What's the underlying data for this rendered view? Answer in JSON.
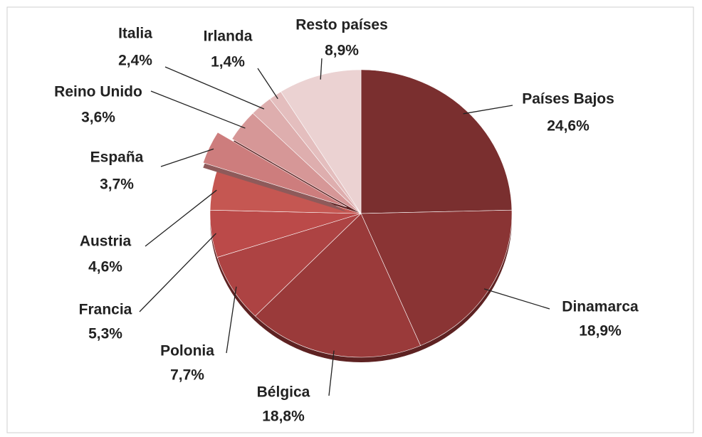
{
  "chart_data": {
    "type": "pie",
    "categories": [
      "Países Bajos",
      "Dinamarca",
      "Bélgica",
      "Polonia",
      "Francia",
      "Austria",
      "España",
      "Reino Unido",
      "Italia",
      "Irlanda",
      "Resto países"
    ],
    "values": [
      24.6,
      18.9,
      18.8,
      7.7,
      5.3,
      4.6,
      3.7,
      3.6,
      2.4,
      1.4,
      8.9
    ],
    "value_labels": [
      "24,6%",
      "18,9%",
      "18,8%",
      "7,7%",
      "5,3%",
      "4,6%",
      "3,7%",
      "3,6%",
      "2,4%",
      "1,4%",
      "8,9%"
    ],
    "colors": [
      "#7a2f2f",
      "#8a3434",
      "#9a3a3a",
      "#ad4343",
      "#bb4a49",
      "#c55752",
      "#cd7d7d",
      "#d69797",
      "#deaeae",
      "#e4bebe",
      "#ebd2d2"
    ],
    "exploded": [
      "España"
    ]
  }
}
